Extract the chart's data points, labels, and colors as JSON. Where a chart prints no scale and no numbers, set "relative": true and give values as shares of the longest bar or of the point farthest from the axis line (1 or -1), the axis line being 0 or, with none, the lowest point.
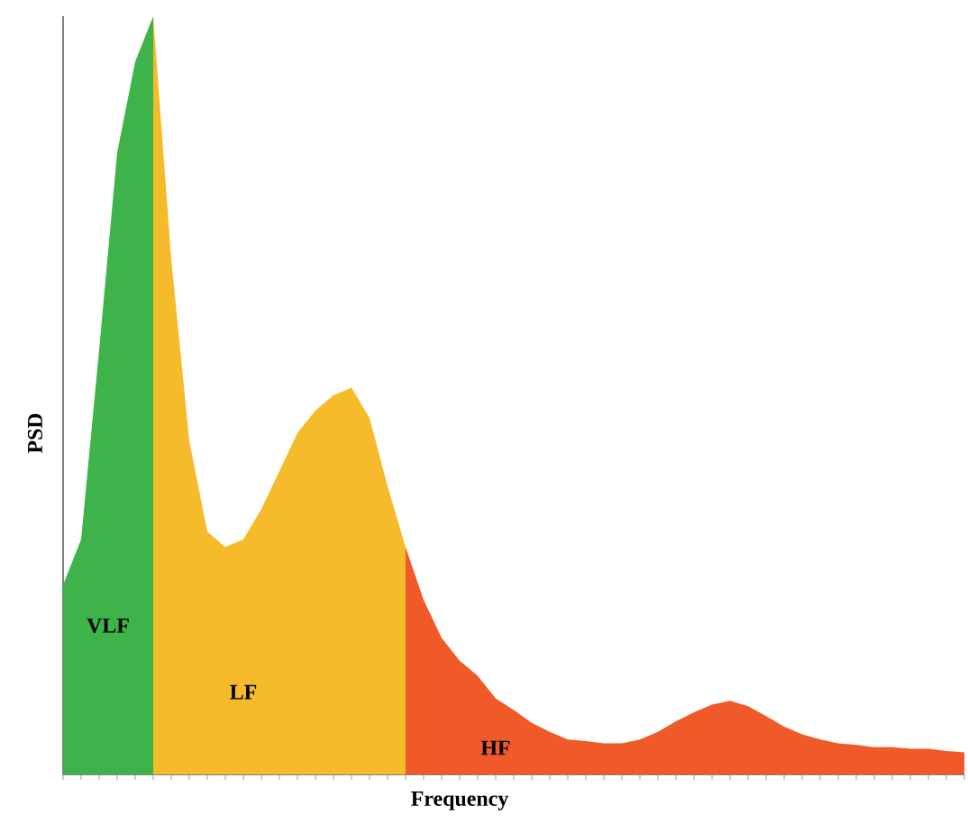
{
  "chart_data": {
    "type": "area",
    "relative": true,
    "xlabel": "Frequency",
    "ylabel": "PSD",
    "categories": [
      null,
      null,
      null,
      null,
      null,
      null,
      null,
      null,
      null,
      null,
      null,
      null,
      null,
      null,
      null,
      null,
      null,
      null,
      null,
      null,
      null,
      null,
      null,
      null,
      null,
      null,
      null,
      null,
      null,
      null,
      null,
      null,
      null,
      null,
      null,
      null,
      null,
      null,
      null,
      null,
      null,
      null,
      null,
      null,
      null,
      null,
      null,
      null,
      null,
      null,
      null
    ],
    "series": [
      {
        "name": "VLF",
        "color": "#3db34a",
        "values": [
          0.25,
          0.31,
          0.56,
          0.82,
          0.94,
          1.0,
          null,
          null,
          null,
          null,
          null,
          null,
          null,
          null,
          null,
          null,
          null,
          null,
          null,
          null,
          null,
          null,
          null,
          null,
          null,
          null,
          null,
          null,
          null,
          null,
          null,
          null,
          null,
          null,
          null,
          null,
          null,
          null,
          null,
          null,
          null,
          null,
          null,
          null,
          null,
          null,
          null,
          null,
          null,
          null,
          null
        ]
      },
      {
        "name": "LF",
        "color": "#f5bb2a",
        "values": [
          null,
          null,
          null,
          null,
          null,
          1.0,
          0.68,
          0.44,
          0.32,
          0.3,
          0.31,
          0.35,
          0.4,
          0.45,
          0.48,
          0.5,
          0.51,
          0.47,
          0.38,
          0.3,
          null,
          null,
          null,
          null,
          null,
          null,
          null,
          null,
          null,
          null,
          null,
          null,
          null,
          null,
          null,
          null,
          null,
          null,
          null,
          null,
          null,
          null,
          null,
          null,
          null,
          null,
          null,
          null,
          null,
          null,
          null
        ]
      },
      {
        "name": "HF",
        "color": "#f05a28",
        "values": [
          null,
          null,
          null,
          null,
          null,
          null,
          null,
          null,
          null,
          null,
          null,
          null,
          null,
          null,
          null,
          null,
          null,
          null,
          null,
          0.3,
          0.23,
          0.18,
          0.15,
          0.13,
          0.1,
          0.085,
          0.068,
          0.056,
          0.046,
          0.044,
          0.041,
          0.041,
          0.046,
          0.056,
          0.07,
          0.082,
          0.092,
          0.097,
          0.09,
          0.077,
          0.063,
          0.053,
          0.046,
          0.041,
          0.039,
          0.036,
          0.036,
          0.034,
          0.034,
          0.031,
          0.029
        ]
      }
    ]
  }
}
